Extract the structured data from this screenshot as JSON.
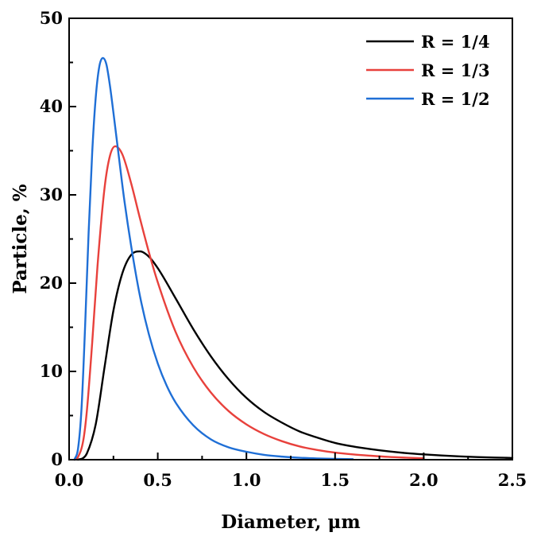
{
  "chart_data": {
    "type": "line",
    "title": "",
    "xlabel": "Diameter, μm",
    "ylabel": "Particle, %",
    "xlim": [
      0,
      2.5
    ],
    "ylim": [
      0,
      50
    ],
    "xticks": [
      "0.0",
      "0.5",
      "1.0",
      "1.5",
      "2.0",
      "2.5"
    ],
    "yticks": [
      "0",
      "10",
      "20",
      "30",
      "40",
      "50"
    ],
    "grid": false,
    "legend_position": "top-right",
    "series": [
      {
        "name": "R = 1/4",
        "color": "#000000",
        "x": [
          0.05,
          0.08,
          0.1,
          0.15,
          0.2,
          0.25,
          0.3,
          0.35,
          0.4,
          0.45,
          0.5,
          0.6,
          0.7,
          0.8,
          0.9,
          1.0,
          1.1,
          1.2,
          1.3,
          1.4,
          1.5,
          1.6,
          1.7,
          1.8,
          1.9,
          2.0,
          2.1,
          2.2,
          2.3,
          2.4,
          2.5
        ],
        "y": [
          0.0,
          0.2,
          0.7,
          4.0,
          10.5,
          16.9,
          21.1,
          23.2,
          23.6,
          23.0,
          21.7,
          18.3,
          14.8,
          11.7,
          9.1,
          7.0,
          5.4,
          4.2,
          3.2,
          2.5,
          1.9,
          1.5,
          1.2,
          0.95,
          0.75,
          0.6,
          0.48,
          0.38,
          0.3,
          0.24,
          0.2
        ]
      },
      {
        "name": "R = 1/3",
        "color": "#e8413c",
        "x": [
          0.03,
          0.05,
          0.08,
          0.1,
          0.13,
          0.16,
          0.2,
          0.23,
          0.26,
          0.3,
          0.35,
          0.4,
          0.45,
          0.5,
          0.6,
          0.7,
          0.8,
          0.9,
          1.0,
          1.1,
          1.2,
          1.3,
          1.4,
          1.5,
          1.6,
          1.7,
          1.8,
          1.9,
          2.0
        ],
        "y": [
          0.0,
          0.3,
          2.2,
          5.5,
          13.2,
          21.9,
          30.8,
          34.4,
          35.5,
          34.6,
          31.3,
          27.3,
          23.5,
          20.1,
          14.5,
          10.5,
          7.6,
          5.5,
          4.0,
          2.9,
          2.1,
          1.5,
          1.1,
          0.8,
          0.6,
          0.45,
          0.32,
          0.23,
          0.16
        ]
      },
      {
        "name": "R = 1/2",
        "color": "#1f6fd6",
        "x": [
          0.03,
          0.05,
          0.07,
          0.09,
          0.11,
          0.13,
          0.15,
          0.17,
          0.19,
          0.21,
          0.23,
          0.25,
          0.28,
          0.31,
          0.35,
          0.4,
          0.45,
          0.5,
          0.55,
          0.6,
          0.7,
          0.8,
          0.9,
          1.0,
          1.1,
          1.2,
          1.3,
          1.4,
          1.5,
          1.6
        ],
        "y": [
          0.0,
          1.2,
          5.8,
          15.0,
          25.7,
          34.7,
          41.0,
          44.5,
          45.5,
          44.8,
          42.4,
          39.3,
          34.4,
          29.6,
          24.2,
          18.5,
          14.2,
          10.9,
          8.4,
          6.5,
          3.9,
          2.3,
          1.4,
          0.9,
          0.55,
          0.35,
          0.22,
          0.14,
          0.09,
          0.06
        ]
      }
    ]
  }
}
